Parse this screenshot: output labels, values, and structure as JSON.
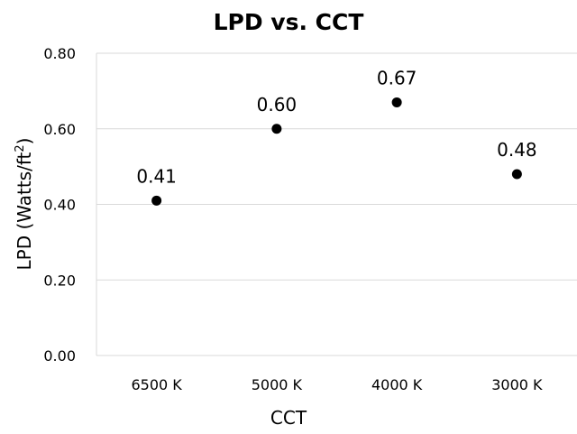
{
  "chart_data": {
    "type": "scatter",
    "title": "LPD vs. CCT",
    "xlabel": "CCT",
    "ylabel": {
      "main": "LPD (Watts/ft",
      "superscript": "2",
      "close": ")"
    },
    "categories": [
      "6500 K",
      "5000 K",
      "4000 K",
      "3000 K"
    ],
    "values": [
      0.41,
      0.6,
      0.67,
      0.48
    ],
    "value_labels": [
      "0.41",
      "0.60",
      "0.67",
      "0.48"
    ],
    "ylim": [
      0,
      0.8
    ],
    "yticks": [
      "0.00",
      "0.20",
      "0.40",
      "0.60",
      "0.80"
    ],
    "grid": "horizontal",
    "legend": "none",
    "marker_color": "#000000",
    "grid_color": "#d9d9d9"
  }
}
